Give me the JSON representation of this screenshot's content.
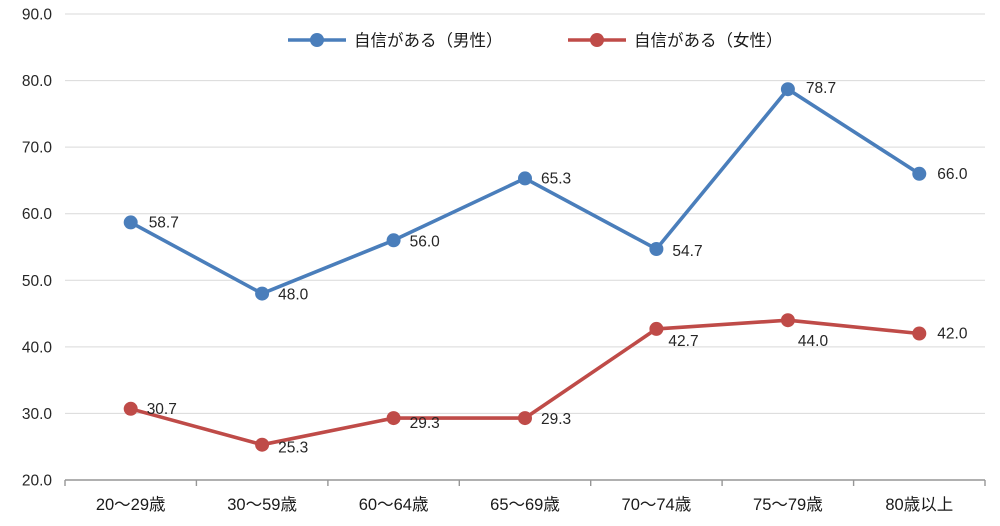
{
  "chart_data": {
    "type": "line",
    "title": "",
    "categories": [
      "20〜29歳",
      "30〜59歳",
      "60〜64歳",
      "65〜69歳",
      "70〜74歳",
      "75〜79歳",
      "80歳以上"
    ],
    "series": [
      {
        "name": "自信がある（男性）",
        "color": "#4a7ebb",
        "values": [
          58.7,
          48.0,
          56.0,
          65.3,
          54.7,
          78.7,
          66.0
        ],
        "label_offsets": [
          [
            18,
            5
          ],
          [
            16,
            6
          ],
          [
            16,
            6
          ],
          [
            16,
            5
          ],
          [
            16,
            7
          ],
          [
            18,
            4
          ],
          [
            18,
            5
          ]
        ]
      },
      {
        "name": "自信がある（女性）",
        "color": "#bf4b48",
        "values": [
          30.7,
          25.3,
          29.3,
          29.3,
          42.7,
          44.0,
          42.0
        ],
        "label_offsets": [
          [
            16,
            5
          ],
          [
            16,
            8
          ],
          [
            16,
            10
          ],
          [
            16,
            6
          ],
          [
            12,
            17
          ],
          [
            10,
            26
          ],
          [
            18,
            5
          ]
        ]
      }
    ],
    "xlabel": "",
    "ylabel": "",
    "ylim": [
      20,
      90
    ],
    "ytick_step": 10,
    "ytick_labels": [
      "20.0",
      "30.0",
      "40.0",
      "50.0",
      "60.0",
      "70.0",
      "80.0",
      "90.0"
    ],
    "value_label_decimals": 1,
    "grid": true,
    "grid_color": "#d9d9d9",
    "axis_color": "#969696",
    "text_color": "#262626",
    "legend_position": "top-center"
  }
}
